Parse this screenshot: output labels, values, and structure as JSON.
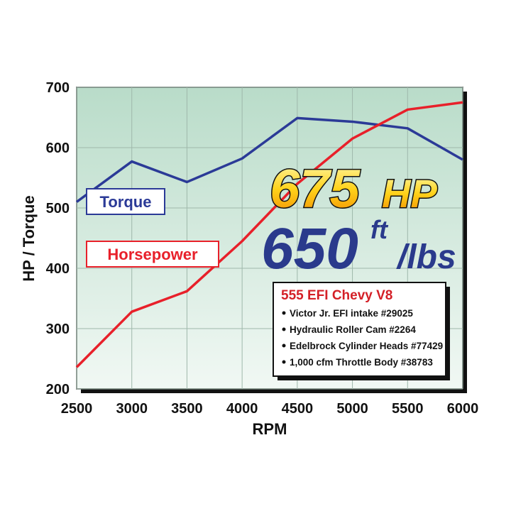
{
  "chart_data": {
    "type": "line",
    "x_label": "RPM",
    "y_label": "HP / Torque",
    "x": [
      2500,
      3000,
      3500,
      4000,
      4500,
      5000,
      5500,
      6000
    ],
    "series": [
      {
        "name": "Torque",
        "color": "#2b3a97",
        "values": [
          510,
          577,
          543,
          582,
          649,
          643,
          632,
          580
        ]
      },
      {
        "name": "Horsepower",
        "color": "#e8202a",
        "values": [
          236,
          328,
          362,
          445,
          540,
          615,
          663,
          675
        ]
      }
    ],
    "xlim": [
      2500,
      6000
    ],
    "xticks": [
      2500,
      3000,
      3500,
      4000,
      4500,
      5000,
      5500,
      6000
    ],
    "ylim": [
      200,
      700
    ],
    "yticks": [
      200,
      300,
      400,
      500,
      600,
      700
    ],
    "grid": true,
    "headline_hp": [
      "675",
      "HP"
    ],
    "headline_torque": [
      "650",
      "ft",
      "/lbs"
    ],
    "info_box": {
      "title": "555 EFI Chevy V8",
      "items": [
        "Victor Jr. EFI intake #29025",
        "Hydraulic Roller Cam #2264",
        "Edelbrock Cylinder Heads #77429",
        "1,000 cfm Throttle Body #38783"
      ]
    }
  }
}
